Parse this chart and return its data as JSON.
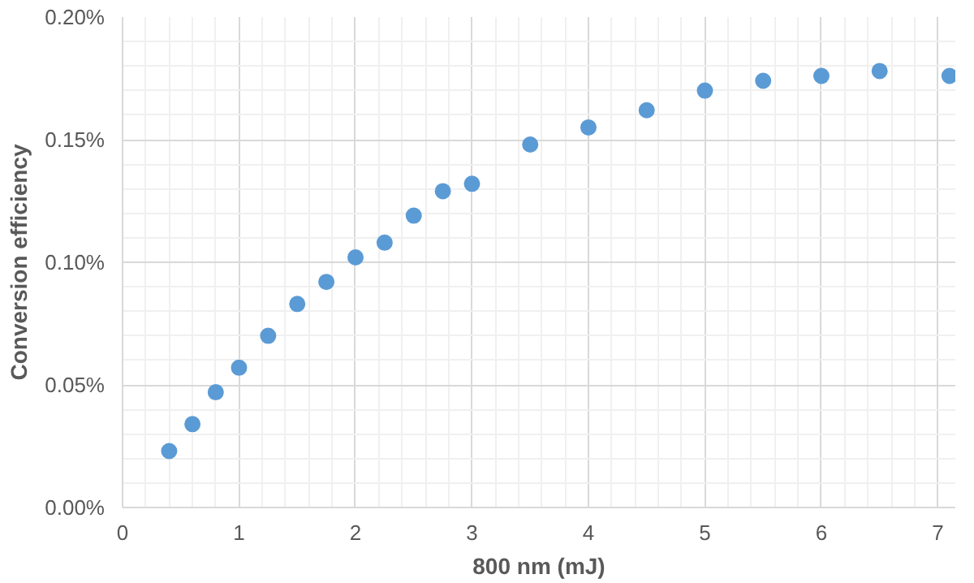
{
  "chart_data": {
    "type": "scatter",
    "xlabel": "800 nm (mJ)",
    "ylabel": "Conversion efficiency",
    "x": [
      0.4,
      0.6,
      0.8,
      1.0,
      1.25,
      1.5,
      1.75,
      2.0,
      2.25,
      2.5,
      2.75,
      3.0,
      3.5,
      4.0,
      4.5,
      5.0,
      5.5,
      6.0,
      6.5,
      7.1
    ],
    "series": [
      {
        "color": "#5b9bd5",
        "values": [
          0.023,
          0.034,
          0.047,
          0.057,
          0.07,
          0.083,
          0.092,
          0.102,
          0.108,
          0.119,
          0.129,
          0.132,
          0.148,
          0.155,
          0.162,
          0.17,
          0.174,
          0.176,
          0.178,
          0.176
        ]
      }
    ],
    "xlim": [
      0,
      7.15
    ],
    "xticks": [
      0,
      1,
      2,
      3,
      4,
      5,
      6,
      7
    ],
    "ylim": [
      0,
      0.2
    ],
    "yticks": [
      {
        "value": 0,
        "label": "0.00%"
      },
      {
        "value": 0.05,
        "label": "0.05%"
      },
      {
        "value": 0.1,
        "label": "0.10%"
      },
      {
        "value": 0.15,
        "label": "0.15%"
      },
      {
        "value": 0.2,
        "label": "0.20%"
      }
    ],
    "grid": true,
    "marker": "circle"
  }
}
